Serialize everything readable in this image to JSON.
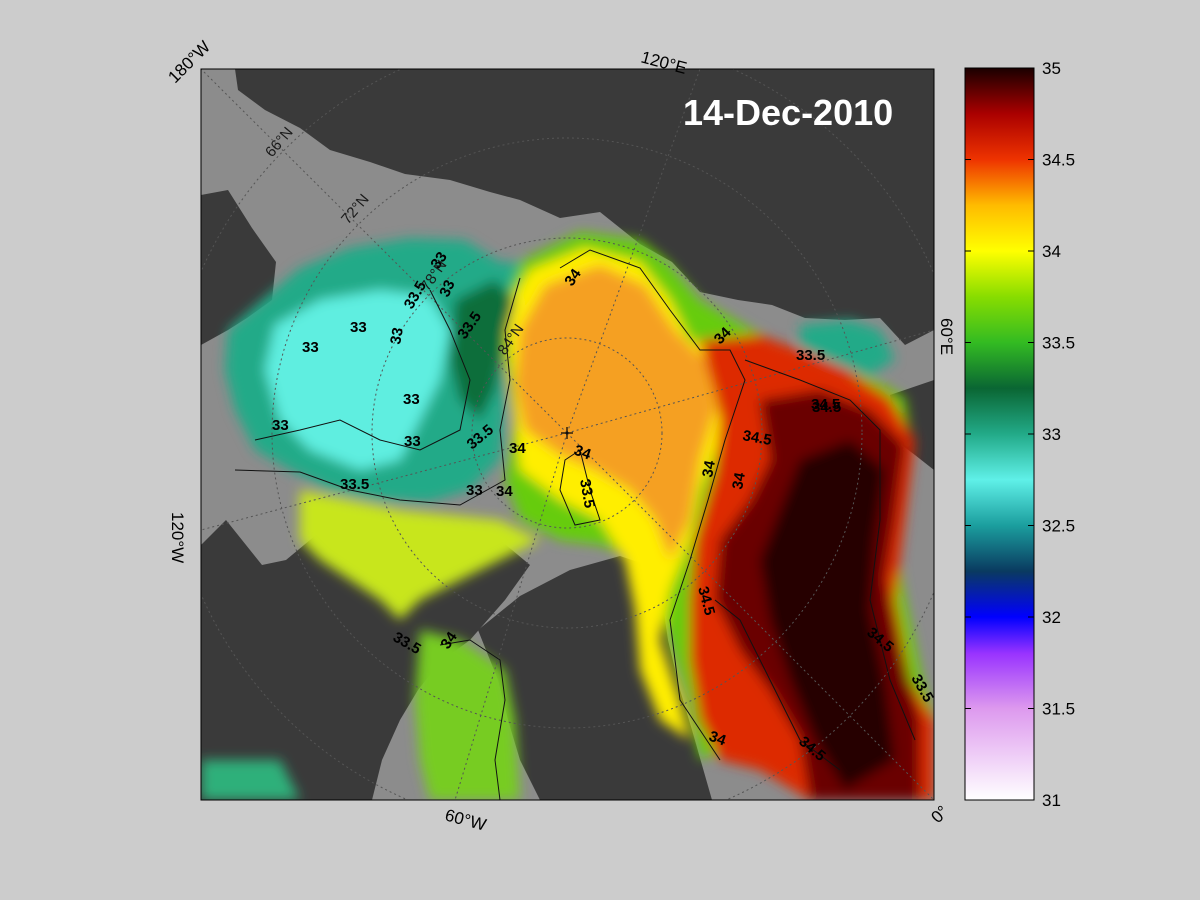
{
  "map": {
    "date_label": "14-Dec-2010",
    "longitude_labels": [
      "180°W",
      "120°E",
      "60°E",
      "0°",
      "60°W",
      "120°W"
    ],
    "latitude_labels": [
      "66°N",
      "72°N",
      "78°N",
      "84°N"
    ],
    "contour_levels": [
      33,
      33.5,
      34,
      34.5
    ],
    "contour_labels": [
      "34",
      "33",
      "33",
      "33.5",
      "84°N",
      "33",
      "34",
      "33.5",
      "34.5",
      "33",
      "33",
      "34",
      "34",
      "34.5",
      "34",
      "34",
      "33",
      "33",
      "33",
      "33.5",
      "33.5",
      "34",
      "33.5",
      "34.5",
      "34.5",
      "34",
      "34.5",
      "33.5",
      "34.5",
      "33",
      "33.5",
      "34",
      "33.5"
    ],
    "colors": {
      "background": "#cccccc",
      "land": "#3a3a3a",
      "shelf": "#8c8c8c"
    }
  },
  "colorbar": {
    "min": 31,
    "max": 35,
    "ticks": [
      "35",
      "34.5",
      "34",
      "33.5",
      "33",
      "32.5",
      "32",
      "31.5",
      "31"
    ],
    "colors": [
      {
        "value": 31.0,
        "color": "#ffffff"
      },
      {
        "value": 31.5,
        "color": "#dd99ee"
      },
      {
        "value": 31.8,
        "color": "#9933ff"
      },
      {
        "value": 32.0,
        "color": "#0000ff"
      },
      {
        "value": 32.25,
        "color": "#0a3a60"
      },
      {
        "value": 32.5,
        "color": "#1b9e9e"
      },
      {
        "value": 32.75,
        "color": "#5ff0e8"
      },
      {
        "value": 33.0,
        "color": "#22aa88"
      },
      {
        "value": 33.25,
        "color": "#0a6633"
      },
      {
        "value": 33.5,
        "color": "#33bb22"
      },
      {
        "value": 33.75,
        "color": "#88dd00"
      },
      {
        "value": 34.0,
        "color": "#ffff00"
      },
      {
        "value": 34.25,
        "color": "#ffbb00"
      },
      {
        "value": 34.5,
        "color": "#ee3300"
      },
      {
        "value": 34.75,
        "color": "#aa0000"
      },
      {
        "value": 35.0,
        "color": "#1a0000"
      }
    ]
  }
}
